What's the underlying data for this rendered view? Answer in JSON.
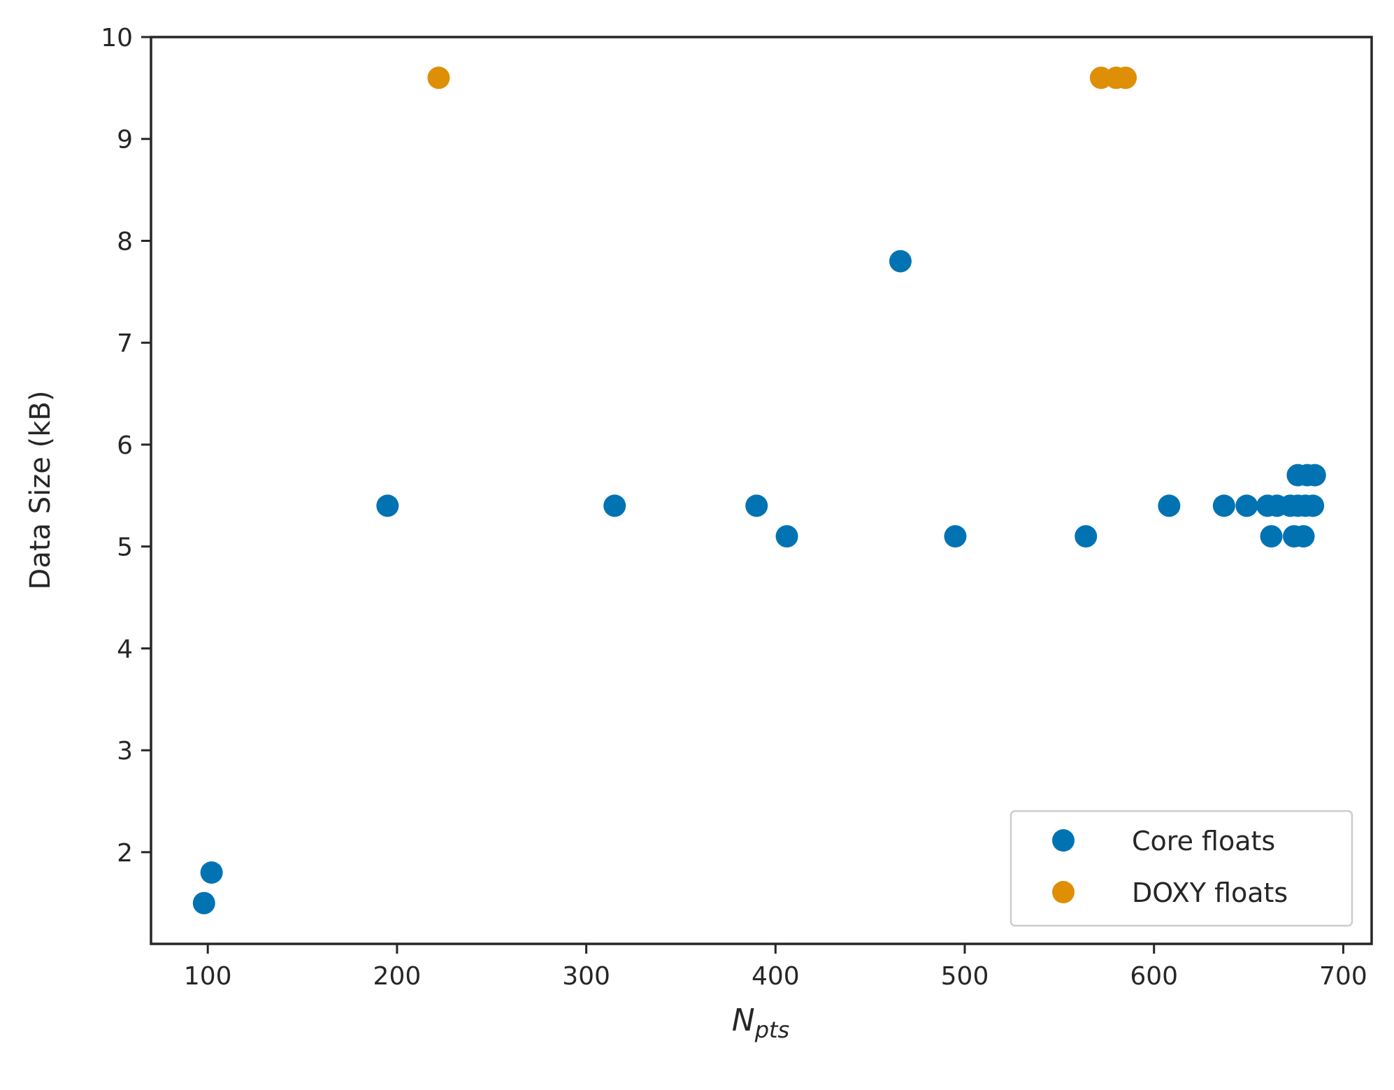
{
  "chart_data": {
    "type": "scatter",
    "title": "",
    "xlabel": {
      "main": "N",
      "sub": "pts"
    },
    "ylabel": "Data Size (kB)",
    "xlim": [
      70,
      715
    ],
    "ylim": [
      1.1,
      10.0
    ],
    "xticks": [
      100,
      200,
      300,
      400,
      500,
      600,
      700
    ],
    "yticks": [
      2,
      3,
      4,
      5,
      6,
      7,
      8,
      9,
      10
    ],
    "grid": false,
    "legend_position": "lower-right",
    "series": [
      {
        "name": "Core floats",
        "color": "#0173b2",
        "points": [
          [
            98,
            1.5
          ],
          [
            102,
            1.8
          ],
          [
            195,
            5.4
          ],
          [
            315,
            5.4
          ],
          [
            390,
            5.4
          ],
          [
            406,
            5.1
          ],
          [
            466,
            7.8
          ],
          [
            495,
            5.1
          ],
          [
            564,
            5.1
          ],
          [
            608,
            5.4
          ],
          [
            637,
            5.4
          ],
          [
            649,
            5.4
          ],
          [
            660,
            5.4
          ],
          [
            665,
            5.4
          ],
          [
            662,
            5.1
          ],
          [
            672,
            5.4
          ],
          [
            674,
            5.1
          ],
          [
            676,
            5.4
          ],
          [
            676,
            5.7
          ],
          [
            679,
            5.1
          ],
          [
            680,
            5.4
          ],
          [
            681,
            5.7
          ],
          [
            684,
            5.4
          ],
          [
            685,
            5.7
          ]
        ]
      },
      {
        "name": "DOXY floats",
        "color": "#de8f05",
        "points": [
          [
            222,
            9.6
          ],
          [
            572,
            9.6
          ],
          [
            580,
            9.6
          ],
          [
            585,
            9.6
          ]
        ]
      }
    ]
  }
}
